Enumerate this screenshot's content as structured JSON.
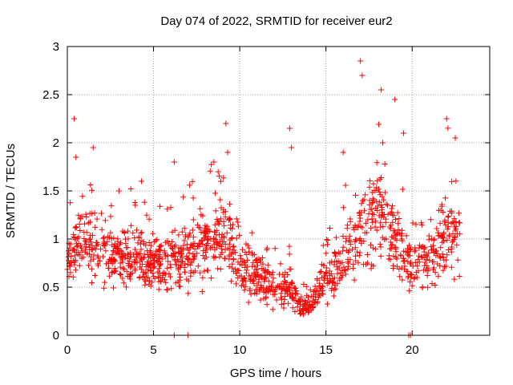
{
  "chart_data": {
    "type": "scatter",
    "title": "Day 074 of 2022, SRMTID for receiver eur2",
    "xlabel": "GPS time / hours",
    "ylabel": "SRMTID / TECUs",
    "xlim": [
      0,
      24.5
    ],
    "ylim": [
      0,
      3
    ],
    "xticks": [
      0,
      5,
      10,
      15,
      20
    ],
    "xtick_labels": [
      "0",
      "5",
      "10",
      "15",
      "20"
    ],
    "yticks": [
      0,
      0.5,
      1,
      1.5,
      2,
      2.5,
      3
    ],
    "ytick_labels": [
      "0",
      "0.5",
      "1",
      "1.5",
      "2",
      "2.5",
      "3"
    ],
    "grid": true,
    "series": [
      {
        "name": "SRMTID",
        "color": "#ff0000",
        "marker": "plus",
        "envelope": {
          "x": [
            0,
            0.5,
            1,
            2,
            3,
            4,
            5,
            6,
            7,
            8,
            9,
            10,
            11,
            12,
            13,
            13.5,
            14,
            15,
            16,
            17,
            18,
            19,
            20,
            21,
            22,
            22.8
          ],
          "y": [
            0.8,
            0.9,
            1.0,
            0.85,
            0.8,
            0.8,
            0.75,
            0.7,
            0.85,
            0.95,
            1.1,
            0.7,
            0.6,
            0.5,
            0.45,
            0.3,
            0.3,
            0.6,
            0.8,
            1.1,
            1.3,
            1.0,
            0.7,
            0.8,
            1.0,
            1.0
          ]
        },
        "spikes": [
          {
            "x": 0.4,
            "y": 2.25
          },
          {
            "x": 0.5,
            "y": 1.85
          },
          {
            "x": 1.5,
            "y": 1.95
          },
          {
            "x": 3.0,
            "y": 1.5
          },
          {
            "x": 4.3,
            "y": 1.6
          },
          {
            "x": 6.2,
            "y": 1.8
          },
          {
            "x": 8.5,
            "y": 1.8
          },
          {
            "x": 9.2,
            "y": 2.2
          },
          {
            "x": 9.3,
            "y": 1.9
          },
          {
            "x": 12.9,
            "y": 2.15
          },
          {
            "x": 13.0,
            "y": 1.95
          },
          {
            "x": 16.0,
            "y": 1.9
          },
          {
            "x": 17.0,
            "y": 2.85
          },
          {
            "x": 17.1,
            "y": 2.7
          },
          {
            "x": 18.2,
            "y": 2.55
          },
          {
            "x": 19.0,
            "y": 2.45
          },
          {
            "x": 19.5,
            "y": 2.1
          },
          {
            "x": 22.0,
            "y": 2.25
          },
          {
            "x": 22.5,
            "y": 2.05
          }
        ],
        "zero_points": [
          6.2,
          7.0,
          19.8,
          19.9
        ]
      }
    ]
  }
}
